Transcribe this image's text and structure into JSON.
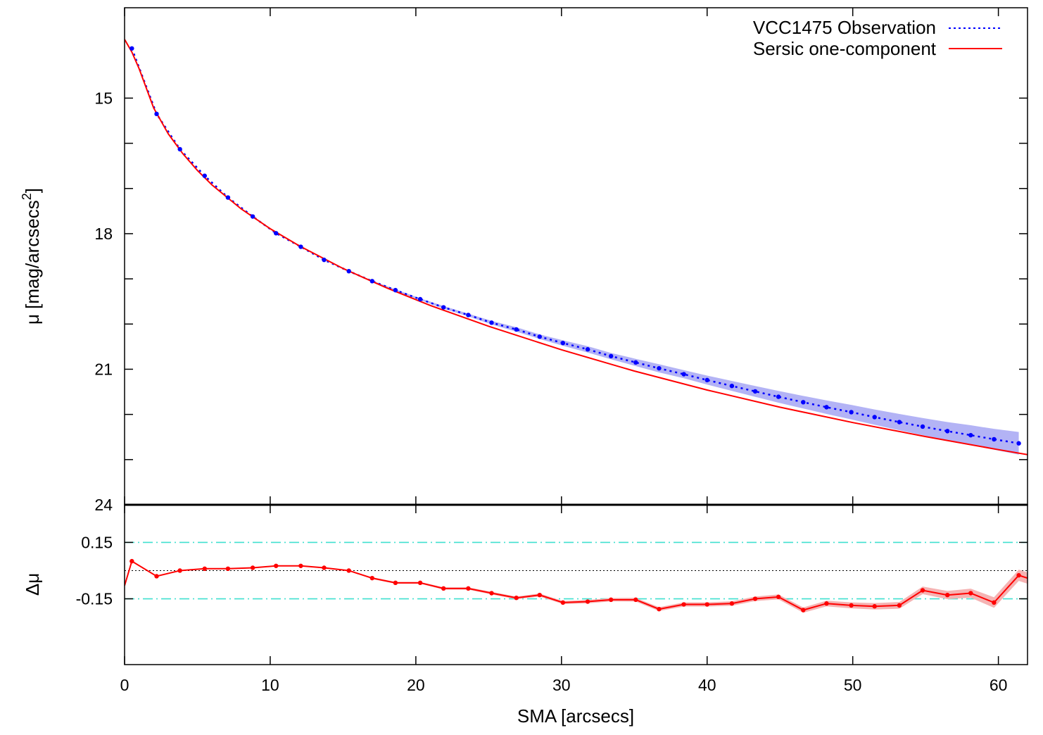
{
  "chart_data": [
    {
      "type": "line",
      "panel": "profile",
      "xlim": [
        0,
        62
      ],
      "ylim": [
        24,
        13
      ],
      "y_inverted": true,
      "ylabel": "μ [mag/arcsecs²]",
      "ylabel_base": "μ [mag/arcsecs",
      "ylabel_sup": "2",
      "ylabel_close": "]",
      "xticks": [
        0,
        10,
        20,
        30,
        40,
        50,
        60
      ],
      "yticks_labeled": [
        15,
        18,
        21,
        24
      ],
      "yticks_minor": [
        16,
        17,
        19,
        20,
        22,
        23
      ],
      "legend_position": "top-right",
      "series": [
        {
          "name": "VCC1475 Observation",
          "style": "dotted line with points and shaded error band",
          "color": "#0000ff",
          "band_color": "#b3b3f5",
          "x": [
            0.5,
            2.2,
            3.8,
            5.5,
            7.1,
            8.8,
            10.4,
            12.1,
            13.7,
            15.4,
            17.0,
            18.6,
            20.3,
            21.9,
            23.6,
            25.2,
            26.9,
            28.5,
            30.1,
            31.8,
            33.4,
            35.1,
            36.7,
            38.4,
            40.0,
            41.7,
            43.3,
            44.9,
            46.6,
            48.2,
            49.9,
            51.5,
            53.2,
            54.8,
            56.5,
            58.1,
            59.7,
            61.4
          ],
          "y": [
            13.9,
            15.35,
            16.13,
            16.72,
            17.2,
            17.62,
            17.99,
            18.29,
            18.58,
            18.83,
            19.05,
            19.25,
            19.45,
            19.63,
            19.8,
            19.97,
            20.12,
            20.28,
            20.42,
            20.56,
            20.71,
            20.85,
            20.98,
            21.11,
            21.24,
            21.37,
            21.49,
            21.61,
            21.73,
            21.84,
            21.95,
            22.06,
            22.17,
            22.27,
            22.37,
            22.46,
            22.55,
            22.64
          ],
          "band_halfwidth": [
            0,
            0,
            0,
            0,
            0,
            0,
            0,
            0,
            0,
            0,
            0.01,
            0.02,
            0.02,
            0.03,
            0.03,
            0.04,
            0.05,
            0.05,
            0.06,
            0.07,
            0.07,
            0.08,
            0.09,
            0.09,
            0.1,
            0.11,
            0.12,
            0.13,
            0.14,
            0.15,
            0.16,
            0.17,
            0.18,
            0.19,
            0.2,
            0.22,
            0.23,
            0.25
          ]
        },
        {
          "name": "Sersic one-component",
          "style": "solid line",
          "color": "#ff0000",
          "x": [
            0,
            0.5,
            1,
            2,
            3,
            4,
            5,
            6,
            8,
            10,
            12,
            15,
            18,
            21,
            25,
            30,
            35,
            40,
            45,
            50,
            55,
            60,
            62
          ],
          "y": [
            13.7,
            13.98,
            14.35,
            15.22,
            15.79,
            16.23,
            16.6,
            16.92,
            17.45,
            17.89,
            18.27,
            18.77,
            19.2,
            19.59,
            20.05,
            20.57,
            21.04,
            21.46,
            21.84,
            22.18,
            22.49,
            22.78,
            22.89
          ]
        }
      ]
    },
    {
      "type": "line",
      "panel": "residual",
      "xlim": [
        0,
        62
      ],
      "ylim": [
        -0.5,
        0.35
      ],
      "xlabel": "SMA [arcsecs]",
      "ylabel": "Δμ",
      "xticks": [
        0,
        10,
        20,
        30,
        40,
        50,
        60
      ],
      "yticks_labeled": [
        0.15,
        -0.15
      ],
      "reference_lines": [
        {
          "y": 0.15,
          "style": "dash-dot",
          "color": "#40e0d0"
        },
        {
          "y": -0.15,
          "style": "dash-dot",
          "color": "#40e0d0"
        },
        {
          "y": 0.0,
          "style": "dotted",
          "color": "#000000"
        }
      ],
      "series": [
        {
          "style": "solid line with points and shaded error band",
          "color": "#ff0000",
          "band_color": "#f5b3b3",
          "x": [
            0,
            0.5,
            2.2,
            3.8,
            5.5,
            7.1,
            8.8,
            10.4,
            12.1,
            13.7,
            15.4,
            17.0,
            18.6,
            20.3,
            21.9,
            23.6,
            25.2,
            26.9,
            28.5,
            30.1,
            31.8,
            33.4,
            35.1,
            36.7,
            38.4,
            40.0,
            41.7,
            43.3,
            44.9,
            46.6,
            48.2,
            49.9,
            51.5,
            53.2,
            54.8,
            56.5,
            58.1,
            59.7,
            61.4,
            62
          ],
          "y": [
            -0.08,
            0.05,
            -0.03,
            0.0,
            0.01,
            0.01,
            0.015,
            0.025,
            0.025,
            0.015,
            0.0,
            -0.04,
            -0.065,
            -0.065,
            -0.095,
            -0.095,
            -0.12,
            -0.145,
            -0.13,
            -0.17,
            -0.165,
            -0.155,
            -0.155,
            -0.205,
            -0.18,
            -0.18,
            -0.175,
            -0.15,
            -0.14,
            -0.21,
            -0.175,
            -0.185,
            -0.19,
            -0.185,
            -0.105,
            -0.13,
            -0.12,
            -0.17,
            -0.025,
            -0.04
          ],
          "band_halfwidth": [
            0,
            0,
            0,
            0,
            0,
            0,
            0,
            0,
            0,
            0,
            0,
            0.005,
            0.005,
            0.005,
            0.006,
            0.006,
            0.007,
            0.007,
            0.008,
            0.008,
            0.009,
            0.009,
            0.01,
            0.01,
            0.011,
            0.011,
            0.012,
            0.012,
            0.013,
            0.014,
            0.015,
            0.016,
            0.017,
            0.018,
            0.02,
            0.022,
            0.024,
            0.028,
            0.03,
            0.03
          ]
        }
      ]
    }
  ]
}
